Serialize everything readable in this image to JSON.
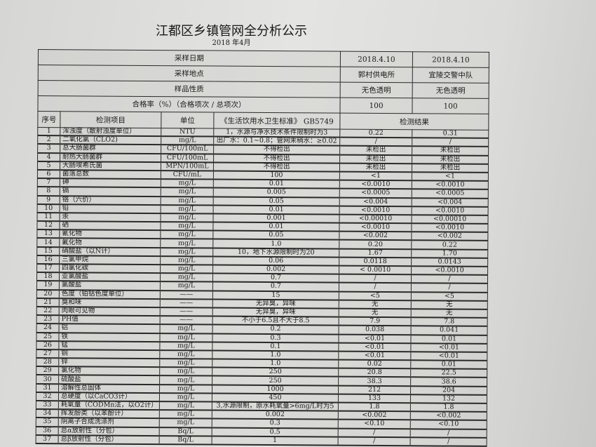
{
  "title": "江都区乡镇管网全分析公示",
  "subtitle": "2018 年4月",
  "meta": [
    {
      "label": "采样日期",
      "v1": "2018.4.10",
      "v2": "2018.4.10"
    },
    {
      "label": "采样地点",
      "v1": "郭村供电所",
      "v2": "宜陵交警中队"
    },
    {
      "label": "样品性质",
      "v1": "无色透明",
      "v2": "无色透明"
    },
    {
      "label": "合格率（%）（合格项次 / 总项次）",
      "v1": "100",
      "v2": "100"
    }
  ],
  "columns": {
    "seq": "序号",
    "item": "检测项目",
    "unit": "单位",
    "standard": "《生活饮用水卫生标准》 GB5749",
    "result": "检测结果"
  },
  "rows": [
    {
      "n": "1",
      "item": "浑浊度（散射浊度单位）",
      "unit": "NTU",
      "std": "1，水源与净水技术条件限制时为3",
      "r1": "0.22",
      "r2": "0.31"
    },
    {
      "n": "2",
      "item": "二氧化氯（CLO2)",
      "unit": "mg/L",
      "std": "出厂水：0.1~0.8；管网末稍水：≥0.02",
      "r1": "/",
      "r2": "/"
    },
    {
      "n": "3",
      "item": "总大肠菌群",
      "unit": "CFU/100mL",
      "std": "不得检出",
      "r1": "未检出",
      "r2": "未检出"
    },
    {
      "n": "4",
      "item": "耐热大肠菌群",
      "unit": "CFU/100mL",
      "std": "不得检出",
      "r1": "未检出",
      "r2": "未检出"
    },
    {
      "n": "5",
      "item": "大肠埃希氏菌",
      "unit": "MPN/100mL",
      "std": "不得检出",
      "r1": "未检出",
      "r2": "未检出"
    },
    {
      "n": "6",
      "item": "菌落总数",
      "unit": "CFU/mL",
      "std": "100",
      "r1": "<1",
      "r2": "<1"
    },
    {
      "n": "7",
      "item": "砷",
      "unit": "mg/L",
      "std": "0.01",
      "r1": "<0.0010",
      "r2": "<0.0010"
    },
    {
      "n": "8",
      "item": "镉",
      "unit": "mg/L",
      "std": "0.005",
      "r1": "<0.0005",
      "r2": "<0.0005"
    },
    {
      "n": "9",
      "item": "铬（六价）",
      "unit": "mg/L",
      "std": "0.05",
      "r1": "<0.004",
      "r2": "<0.004"
    },
    {
      "n": "10",
      "item": "铅",
      "unit": "mg/L",
      "std": "0.01",
      "r1": "<0.0010",
      "r2": "<0.0010"
    },
    {
      "n": "11",
      "item": "汞",
      "unit": "mg/L",
      "std": "0.001",
      "r1": "<0.00010",
      "r2": "<0.00010"
    },
    {
      "n": "12",
      "item": "硒",
      "unit": "mg/L",
      "std": "0.01",
      "r1": "<0.0010",
      "r2": "<0.0010"
    },
    {
      "n": "13",
      "item": "氰化物",
      "unit": "mg/L",
      "std": "0.05",
      "r1": "<0.002",
      "r2": "<0.002"
    },
    {
      "n": "14",
      "item": "氟化物",
      "unit": "mg/L",
      "std": "1.0",
      "r1": "0.20",
      "r2": "0.22"
    },
    {
      "n": "15",
      "item": "硝酸盐（以N计）",
      "unit": "mg/L",
      "std": "10，地下水源限制时为20",
      "r1": "1.67",
      "r2": "1.70"
    },
    {
      "n": "16",
      "item": "三氯甲烷",
      "unit": "mg/L",
      "std": "0.06",
      "r1": "0.0118",
      "r2": "0.0143"
    },
    {
      "n": "17",
      "item": "四氯化碳",
      "unit": "mg/L",
      "std": "0.002",
      "r1": "< 0.0010",
      "r2": "<0.0010"
    },
    {
      "n": "18",
      "item": "亚氯酸盐",
      "unit": "mg/L",
      "std": "0.7",
      "r1": "/",
      "r2": "/"
    },
    {
      "n": "19",
      "item": "氯酸盐",
      "unit": "mg/L",
      "std": "0.7",
      "r1": "/",
      "r2": "/"
    },
    {
      "n": "20",
      "item": "色度（铂钴色度单位）",
      "unit": "——",
      "std": "15",
      "r1": "<5",
      "r2": "<5"
    },
    {
      "n": "21",
      "item": "臭和味",
      "unit": "——",
      "std": "无异臭，异味",
      "r1": "无",
      "r2": "无"
    },
    {
      "n": "22",
      "item": "肉眼可见物",
      "unit": "——",
      "std": "无异臭，异味",
      "r1": "无",
      "r2": "无"
    },
    {
      "n": "23",
      "item": "PH值",
      "unit": "——",
      "std": "不小于6.5且不大于8.5",
      "r1": "7.9",
      "r2": "7.8"
    },
    {
      "n": "24",
      "item": "铝",
      "unit": "mg/L",
      "std": "0.2",
      "r1": "0.038",
      "r2": "0.041"
    },
    {
      "n": "25",
      "item": "铁",
      "unit": "mg/L",
      "std": "0.3",
      "r1": "<0.01",
      "r2": "0.01"
    },
    {
      "n": "26",
      "item": "锰",
      "unit": "mg/L",
      "std": "0.1",
      "r1": "<0.01",
      "r2": "<0.01"
    },
    {
      "n": "27",
      "item": "铜",
      "unit": "mg/L",
      "std": "1.0",
      "r1": "<0.01",
      "r2": "<0.01"
    },
    {
      "n": "28",
      "item": "锌",
      "unit": "mg/L",
      "std": "1.0",
      "r1": "0.02",
      "r2": "0.01"
    },
    {
      "n": "29",
      "item": "氯化物",
      "unit": "mg/L",
      "std": "250",
      "r1": "20.8",
      "r2": "22.5"
    },
    {
      "n": "30",
      "item": "硫酸盐",
      "unit": "mg/L",
      "std": "250",
      "r1": "38.3",
      "r2": "38.6"
    },
    {
      "n": "31",
      "item": "溶解性总固体",
      "unit": "mg/L",
      "std": "1000",
      "r1": "212",
      "r2": "204"
    },
    {
      "n": "32",
      "item": "总硬度（以CaCO3计）",
      "unit": "mg/L",
      "std": "450",
      "r1": "133",
      "r2": "132"
    },
    {
      "n": "33",
      "item": "耗氧量（CODMn法，以O2计）",
      "unit": "mg/L",
      "std": "3,水源限制，原水耗氧量>6mg/L时为5",
      "r1": "1.8",
      "r2": "1.8"
    },
    {
      "n": "34",
      "item": "挥发酚类（以苯酚计）",
      "unit": "mg/L",
      "std": "0.002",
      "r1": "<0.002",
      "r2": "<0.002"
    },
    {
      "n": "35",
      "item": "阴离子合成洗涤剂",
      "unit": "mg/L",
      "std": "0.3",
      "r1": "<0.10",
      "r2": "<0.10"
    },
    {
      "n": "36",
      "item": "总α放射性（分包）",
      "unit": "Bq/L",
      "std": "0.5",
      "r1": "/",
      "r2": "/"
    },
    {
      "n": "37",
      "item": "总β放射性（分包）",
      "unit": "Bq/L",
      "std": "1",
      "r1": "/",
      "r2": "/"
    }
  ]
}
